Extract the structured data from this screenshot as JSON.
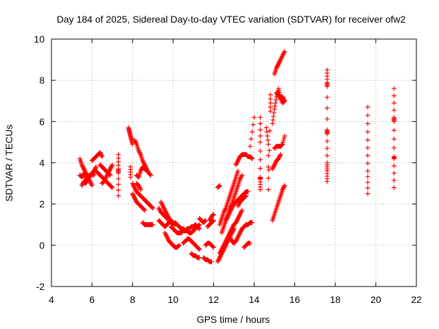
{
  "chart_data": {
    "type": "scatter",
    "title": "Day 184 of 2025, Sidereal Day-to-day VTEC variation (SDTVAR) for receiver ofw2",
    "xlabel": "GPS time / hours",
    "ylabel": "SDTVAR / TECUs",
    "xlim": [
      4,
      22
    ],
    "ylim": [
      -2,
      10
    ],
    "xticks": [
      4,
      6,
      8,
      10,
      12,
      14,
      16,
      18,
      20,
      22
    ],
    "yticks": [
      -2,
      0,
      2,
      4,
      6,
      8,
      10
    ],
    "grid": true,
    "marker": "+",
    "color": "#ff0000",
    "series": [
      {
        "name": "SDTVAR",
        "segments": [
          {
            "x": [
              5.4,
              5.5,
              5.6,
              5.7,
              5.8,
              5.9,
              6.0,
              6.1
            ],
            "y": [
              3.4,
              3.3,
              3.5,
              3.2,
              3.4,
              3.3,
              3.5,
              3.4
            ]
          },
          {
            "x": [
              5.4,
              5.5,
              5.6,
              5.7,
              5.8,
              5.9,
              6.0
            ],
            "y": [
              4.2,
              3.9,
              3.7,
              3.5,
              3.3,
              3.1,
              2.9
            ]
          },
          {
            "x": [
              5.5,
              5.6,
              5.7,
              5.8,
              5.9,
              6.0,
              6.1,
              6.2
            ],
            "y": [
              2.9,
              3.1,
              3.0,
              3.2,
              3.4,
              3.5,
              3.6,
              3.8
            ]
          },
          {
            "x": [
              6.0,
              6.1,
              6.2,
              6.3,
              6.4,
              6.5
            ],
            "y": [
              4.1,
              4.2,
              4.3,
              4.4,
              4.5,
              4.3
            ]
          },
          {
            "x": [
              6.2,
              6.3,
              6.4,
              6.5,
              6.6,
              6.7,
              6.8,
              6.9,
              7.0
            ],
            "y": [
              3.6,
              3.5,
              3.4,
              3.3,
              3.2,
              3.1,
              3.0,
              2.9,
              2.8
            ]
          },
          {
            "x": [
              6.4,
              6.5,
              6.6,
              6.7,
              6.8,
              6.9
            ],
            "y": [
              3.9,
              3.8,
              3.7,
              3.6,
              3.5,
              3.4
            ]
          },
          {
            "x": [
              6.5,
              6.6,
              6.7,
              6.8,
              6.9,
              7.0
            ],
            "y": [
              3.0,
              3.1,
              3.3,
              3.5,
              3.7,
              3.9
            ]
          },
          {
            "x": [
              7.3,
              7.3,
              7.3,
              7.3
            ],
            "y": [
              4.4,
              3.7,
              3.5,
              2.4
            ]
          },
          {
            "x": [
              7.8,
              7.85,
              7.9,
              7.95,
              8.0
            ],
            "y": [
              5.7,
              5.5,
              5.3,
              5.1,
              4.9
            ]
          },
          {
            "x": [
              7.9,
              7.9
            ],
            "y": [
              3.8,
              3.3
            ]
          },
          {
            "x": [
              8.1,
              8.2,
              8.3,
              8.4,
              8.5,
              8.6,
              8.7,
              8.8,
              8.9
            ],
            "y": [
              5.1,
              4.9,
              4.6,
              4.4,
              4.1,
              3.9,
              3.7,
              3.5,
              3.4
            ]
          },
          {
            "x": [
              8.0,
              8.1,
              8.2,
              8.3,
              8.4,
              8.5,
              8.6,
              8.7,
              8.8,
              8.9,
              9.0
            ],
            "y": [
              3.0,
              2.8,
              2.6,
              2.5,
              2.4,
              2.3,
              2.2,
              2.1,
              2.0,
              1.9,
              1.8
            ]
          },
          {
            "x": [
              8.0,
              8.1,
              8.2,
              8.3,
              8.4,
              8.5,
              8.6
            ],
            "y": [
              2.5,
              2.3,
              2.1,
              2.0,
              1.9,
              1.8,
              1.7
            ]
          },
          {
            "x": [
              8.2,
              8.3,
              8.4,
              8.5,
              8.6,
              8.7
            ],
            "y": [
              3.4,
              3.3,
              3.6,
              3.8,
              3.7,
              3.6
            ]
          },
          {
            "x": [
              8.5,
              8.6,
              8.7,
              8.8,
              8.9,
              9.0
            ],
            "y": [
              1.1,
              1.0,
              1.0,
              1.0,
              1.0,
              1.0
            ]
          },
          {
            "x": [
              8.2,
              8.3,
              8.4
            ],
            "y": [
              3.0,
              2.9,
              2.7
            ]
          },
          {
            "x": [
              9.3,
              9.4,
              9.5,
              9.6,
              9.7,
              9.8,
              9.9,
              10.0
            ],
            "y": [
              1.8,
              1.6,
              1.5,
              1.4,
              1.3,
              1.2,
              1.1,
              1.0
            ]
          },
          {
            "x": [
              9.4,
              9.5,
              9.6,
              9.7,
              9.8,
              9.9,
              10.0,
              10.1
            ],
            "y": [
              2.1,
              1.9,
              1.7,
              1.5,
              1.3,
              1.2,
              1.1,
              1.0
            ]
          },
          {
            "x": [
              9.3,
              9.4,
              9.5,
              9.6,
              9.7,
              9.8,
              9.9
            ],
            "y": [
              1.2,
              1.1,
              1.0,
              0.9,
              1.0,
              1.1,
              1.2
            ]
          },
          {
            "x": [
              9.6,
              9.7,
              9.8,
              9.9,
              10.0,
              10.1,
              10.2,
              10.3
            ],
            "y": [
              0.6,
              0.4,
              0.2,
              0.1,
              0.0,
              -0.1,
              -0.1,
              0.0
            ]
          },
          {
            "x": [
              9.9,
              10.0,
              10.1,
              10.2,
              10.3,
              10.4,
              10.5,
              10.6,
              10.7,
              10.8,
              10.9,
              11.0,
              11.1,
              11.2,
              11.3
            ],
            "y": [
              0.9,
              0.8,
              0.7,
              0.6,
              0.6,
              0.6,
              0.7,
              0.7,
              0.8,
              0.8,
              0.9,
              0.9,
              1.0,
              0.9,
              0.8
            ]
          },
          {
            "x": [
              10.1,
              10.2,
              10.3,
              10.4,
              10.5,
              10.6,
              10.7,
              10.8,
              10.9,
              11.0,
              11.1,
              11.2,
              11.3
            ],
            "y": [
              1.1,
              1.0,
              0.9,
              0.8,
              0.8,
              0.7,
              0.7,
              0.6,
              0.6,
              0.7,
              0.8,
              0.9,
              1.0
            ]
          },
          {
            "x": [
              10.5,
              10.6,
              10.7,
              10.8,
              10.9,
              11.0,
              11.1,
              11.2,
              11.3
            ],
            "y": [
              0.1,
              0.2,
              0.3,
              0.3,
              0.2,
              0.1,
              0.0,
              -0.1,
              -0.2
            ]
          },
          {
            "x": [
              11.3,
              11.4,
              11.5,
              11.6
            ],
            "y": [
              1.3,
              1.2,
              1.1,
              1.2
            ]
          },
          {
            "x": [
              10.9,
              11.0,
              11.1,
              11.2,
              11.3
            ],
            "y": [
              -0.4,
              -0.5,
              -0.5,
              -0.6,
              -0.6
            ]
          },
          {
            "x": [
              11.5,
              11.6,
              11.7,
              11.8,
              11.9
            ],
            "y": [
              -0.6,
              -0.7,
              -0.7,
              -0.8,
              -0.8
            ]
          },
          {
            "x": [
              11.6,
              11.7,
              11.8,
              11.9,
              12.0
            ],
            "y": [
              0.0,
              0.1,
              0.1,
              0.0,
              -0.1
            ]
          },
          {
            "x": [
              11.7,
              11.8,
              11.9,
              12.0
            ],
            "y": [
              0.9,
              1.0,
              1.1,
              1.2
            ]
          },
          {
            "x": [
              11.8,
              11.9,
              12.0
            ],
            "y": [
              1.2,
              1.4,
              1.5
            ]
          },
          {
            "x": [
              12.2,
              12.3,
              12.4,
              12.5,
              12.6,
              12.7,
              12.8,
              12.9,
              13.0
            ],
            "y": [
              -0.8,
              -0.6,
              -0.4,
              -0.2,
              0.0,
              0.2,
              0.4,
              0.6,
              0.8
            ]
          },
          {
            "x": [
              12.3,
              12.4,
              12.5,
              12.6,
              12.7,
              12.8,
              12.9,
              13.0,
              13.1,
              13.2,
              13.3,
              13.4
            ],
            "y": [
              -0.4,
              -0.2,
              0.0,
              0.2,
              0.4,
              0.6,
              0.8,
              1.0,
              1.1,
              1.3,
              1.5,
              1.7
            ]
          },
          {
            "x": [
              12.3,
              12.4,
              12.5,
              12.6,
              12.7,
              12.8,
              12.9,
              13.0,
              13.1,
              13.2
            ],
            "y": [
              1.0,
              1.3,
              1.6,
              1.8,
              2.1,
              2.4,
              2.7,
              3.0,
              3.3,
              3.6
            ]
          },
          {
            "x": [
              12.4,
              12.5,
              12.6,
              12.7,
              12.8,
              12.9,
              13.0,
              13.1,
              13.2,
              13.3,
              13.4
            ],
            "y": [
              0.6,
              0.9,
              1.2,
              1.5,
              1.8,
              2.0,
              2.3,
              2.6,
              2.9,
              3.2,
              3.4
            ]
          },
          {
            "x": [
              12.6,
              12.7,
              12.8,
              12.9,
              13.0,
              13.1,
              13.2,
              13.3,
              13.4,
              13.5,
              13.6,
              13.7
            ],
            "y": [
              1.2,
              1.4,
              1.6,
              1.8,
              2.0,
              2.1,
              2.2,
              2.3,
              2.4,
              2.5,
              2.6,
              2.6
            ]
          },
          {
            "x": [
              13.1,
              13.2,
              13.3,
              13.4,
              13.5,
              13.6,
              13.7,
              13.8,
              13.9
            ],
            "y": [
              3.9,
              4.1,
              4.3,
              4.4,
              4.4,
              4.4,
              4.3,
              4.3,
              4.2
            ]
          },
          {
            "x": [
              12.8,
              12.9,
              13.0,
              13.1,
              13.2,
              13.3,
              13.4,
              13.5,
              13.6,
              13.7,
              13.8,
              13.9
            ],
            "y": [
              0.4,
              0.2,
              0.1,
              0.2,
              0.4,
              0.6,
              0.8,
              0.9,
              1.0,
              1.0,
              1.1,
              1.1
            ]
          },
          {
            "x": [
              13.2,
              13.3,
              13.4,
              13.5,
              13.6
            ],
            "y": [
              1.9,
              2.1,
              2.2,
              2.3,
              2.4
            ]
          },
          {
            "x": [
              13.5,
              13.6,
              13.7,
              13.8
            ],
            "y": [
              -0.1,
              0.0,
              0.1,
              0.1
            ]
          },
          {
            "x": [
              12.2,
              12.3
            ],
            "y": [
              2.8,
              2.9
            ]
          },
          {
            "x": [
              13.8,
              14.0
            ],
            "y": [
              4.8,
              6.2
            ]
          },
          {
            "x": [
              14.3,
              14.3,
              14.3,
              14.3,
              14.3
            ],
            "y": [
              6.2,
              5.0,
              3.3,
              3.2,
              2.7
            ]
          },
          {
            "x": [
              14.6,
              14.7,
              14.7,
              14.8,
              14.8
            ],
            "y": [
              5.7,
              4.9,
              2.7,
              6.5,
              7.3
            ]
          },
          {
            "x": [
              14.9,
              15.0,
              15.1,
              15.2,
              15.3,
              15.4,
              15.5
            ],
            "y": [
              5.9,
              6.6,
              7.2,
              7.6,
              7.2,
              6.9,
              7.0
            ]
          },
          {
            "x": [
              15.0,
              15.1,
              15.2,
              15.3,
              15.4,
              15.5
            ],
            "y": [
              8.3,
              8.6,
              8.8,
              9.0,
              9.2,
              9.4
            ]
          },
          {
            "x": [
              14.9,
              15.0,
              15.1,
              15.2,
              15.3,
              15.4,
              15.5
            ],
            "y": [
              1.2,
              1.5,
              1.8,
              2.1,
              2.4,
              2.7,
              2.9
            ]
          },
          {
            "x": [
              15.0,
              15.1,
              15.2,
              15.3,
              15.4,
              15.5
            ],
            "y": [
              4.7,
              4.8,
              4.8,
              4.8,
              4.9,
              5.3
            ]
          },
          {
            "x": [
              14.9,
              15.0,
              15.1,
              15.2,
              15.3
            ],
            "y": [
              3.7,
              3.9,
              4.1,
              4.2,
              4.4
            ]
          },
          {
            "x": [
              15.1,
              15.2,
              15.3,
              15.4,
              15.5
            ],
            "y": [
              7.4,
              7.3,
              7.1,
              7.2,
              7.0
            ]
          },
          {
            "x": [
              17.6,
              17.6,
              17.6,
              17.6,
              17.6,
              17.6,
              17.6,
              17.6
            ],
            "y": [
              8.5,
              7.9,
              7.7,
              5.6,
              5.4,
              4.0,
              3.6,
              3.1
            ]
          },
          {
            "x": [
              19.6,
              19.6,
              19.6,
              19.6
            ],
            "y": [
              6.7,
              5.1,
              3.6,
              2.5
            ]
          },
          {
            "x": [
              20.9,
              20.9,
              20.9,
              20.9,
              20.9,
              20.9
            ],
            "y": [
              7.6,
              6.2,
              6.0,
              4.3,
              4.2,
              2.8
            ]
          }
        ]
      }
    ]
  }
}
